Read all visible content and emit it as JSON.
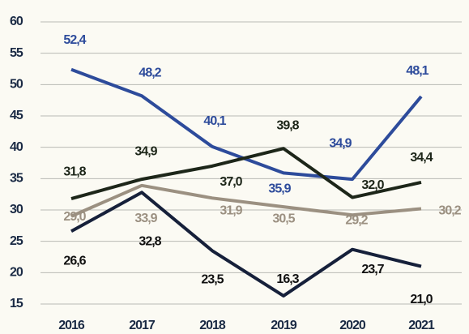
{
  "chart_data": {
    "type": "line",
    "categories": [
      "2016",
      "2017",
      "2018",
      "2019",
      "2020",
      "2021"
    ],
    "series": [
      {
        "color": "#2d4b9b",
        "label_color": "#2d4b9b",
        "values": [
          52.4,
          48.2,
          40.1,
          35.9,
          34.9,
          48.1
        ],
        "value_labels": [
          "52,4",
          "48,2",
          "40,1",
          "35,9",
          "34,9",
          "48,1"
        ]
      },
      {
        "color": "#1d2619",
        "label_color": "#1d2619",
        "values": [
          31.8,
          34.9,
          37.0,
          39.8,
          32.0,
          34.4
        ],
        "value_labels": [
          "31,8",
          "34,9",
          "37,0",
          "39,8",
          "32,0",
          "34,4"
        ]
      },
      {
        "color": "#9b9081",
        "label_color": "#9b9081",
        "values": [
          29.0,
          33.9,
          31.9,
          30.5,
          29.2,
          30.2
        ],
        "value_labels": [
          "29,0",
          "33,9",
          "31,9",
          "30,5",
          "29,2",
          "30,2"
        ]
      },
      {
        "color": "#16203a",
        "label_color": "#111111",
        "values": [
          26.6,
          32.8,
          23.5,
          16.3,
          23.7,
          21.0
        ],
        "value_labels": [
          "26,6",
          "32,8",
          "23,5",
          "16,3",
          "23,7",
          "21,0"
        ]
      }
    ],
    "ylim": [
      15,
      60
    ],
    "yticks": [
      15,
      20,
      25,
      30,
      35,
      40,
      45,
      50,
      55,
      60
    ],
    "grid": true
  }
}
